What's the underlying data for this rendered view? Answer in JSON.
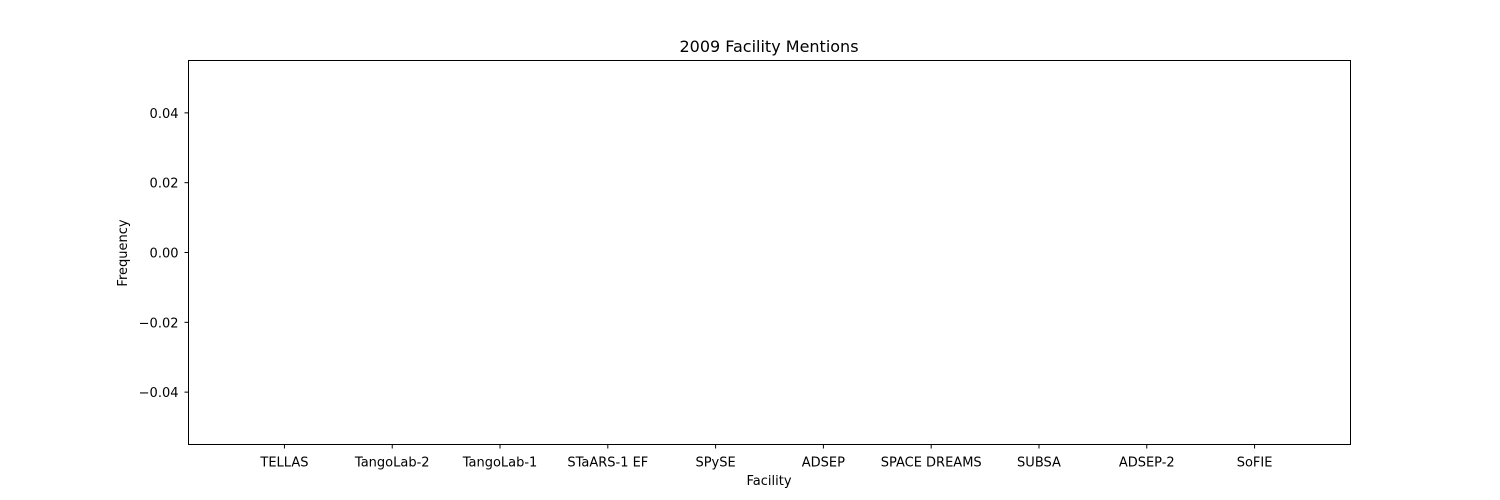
{
  "chart_data": {
    "type": "bar",
    "title": "2009 Facility Mentions",
    "xlabel": "Facility",
    "ylabel": "Frequency",
    "categories": [
      "TELLAS",
      "TangoLab-2",
      "TangoLab-1",
      "STaARS-1 EF",
      "SPySE",
      "ADSEP",
      "SPACE DREAMS",
      "SUBSA",
      "ADSEP-2",
      "SoFIE"
    ],
    "values": [
      0,
      0,
      0,
      0,
      0,
      0,
      0,
      0,
      0,
      0
    ],
    "ylim": [
      -0.055,
      0.055
    ],
    "yticks": [
      0.04,
      0.02,
      0.0,
      -0.02,
      -0.04
    ],
    "ytick_labels": [
      "0.04",
      "0.02",
      "0.00",
      "−0.02",
      "−0.04"
    ],
    "grid": false,
    "bar_color": "#1f77b4"
  }
}
